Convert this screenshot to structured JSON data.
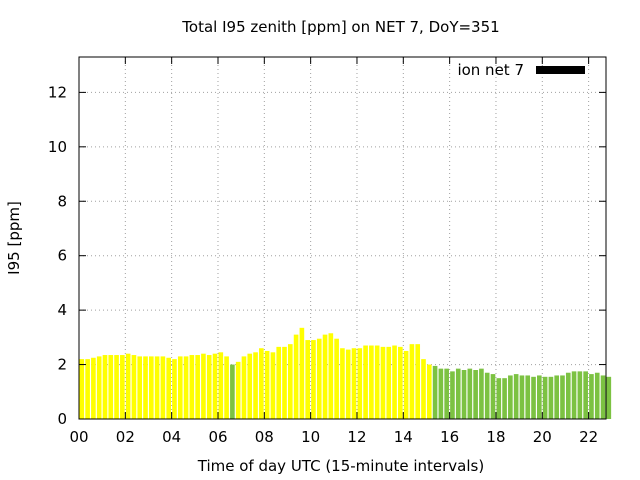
{
  "chart_data": {
    "type": "bar",
    "title": "Total I95 zenith [ppm] on NET 7, DoY=351",
    "xlabel": "Time of day UTC (15-minute intervals)",
    "ylabel": "I95 [ppm]",
    "xlim": [
      0,
      22.75
    ],
    "ylim": [
      0,
      13.3
    ],
    "xticks": [
      "00",
      "02",
      "04",
      "06",
      "08",
      "10",
      "12",
      "14",
      "16",
      "18",
      "20",
      "22"
    ],
    "xtick_values": [
      0,
      2,
      4,
      6,
      8,
      10,
      12,
      14,
      16,
      18,
      20,
      22
    ],
    "yticks": [
      "0",
      "2",
      "4",
      "6",
      "8",
      "10",
      "12"
    ],
    "ytick_values": [
      0,
      2,
      4,
      6,
      8,
      10,
      12
    ],
    "grid": true,
    "legend": {
      "label": "ion net 7",
      "position": "top-right",
      "color": "#000000"
    },
    "colors": {
      "yellow": "#ffff00",
      "green": "#7cc242"
    },
    "interval_hours": 0.25,
    "values": [
      2.2,
      2.2,
      2.25,
      2.3,
      2.35,
      2.35,
      2.35,
      2.35,
      2.4,
      2.35,
      2.3,
      2.3,
      2.3,
      2.3,
      2.3,
      2.25,
      2.2,
      2.3,
      2.3,
      2.35,
      2.35,
      2.4,
      2.35,
      2.4,
      2.45,
      2.3,
      2.0,
      2.1,
      2.3,
      2.4,
      2.45,
      2.6,
      2.5,
      2.45,
      2.65,
      2.65,
      2.75,
      3.1,
      3.35,
      2.9,
      2.9,
      2.95,
      3.1,
      3.15,
      2.95,
      2.6,
      2.55,
      2.6,
      2.6,
      2.7,
      2.7,
      2.7,
      2.65,
      2.65,
      2.7,
      2.65,
      2.5,
      2.75,
      2.75,
      2.2,
      2.0,
      1.95,
      1.85,
      1.85,
      1.75,
      1.85,
      1.8,
      1.85,
      1.8,
      1.85,
      1.7,
      1.65,
      1.5,
      1.5,
      1.6,
      1.65,
      1.6,
      1.6,
      1.55,
      1.6,
      1.55,
      1.55,
      1.6,
      1.6,
      1.7,
      1.75,
      1.75,
      1.75,
      1.65,
      1.7,
      1.6,
      1.55
    ],
    "bar_colors": [
      "yellow",
      "yellow",
      "yellow",
      "yellow",
      "yellow",
      "yellow",
      "yellow",
      "yellow",
      "yellow",
      "yellow",
      "yellow",
      "yellow",
      "yellow",
      "yellow",
      "yellow",
      "yellow",
      "yellow",
      "yellow",
      "yellow",
      "yellow",
      "yellow",
      "yellow",
      "yellow",
      "yellow",
      "yellow",
      "yellow",
      "green",
      "yellow",
      "yellow",
      "yellow",
      "yellow",
      "yellow",
      "yellow",
      "yellow",
      "yellow",
      "yellow",
      "yellow",
      "yellow",
      "yellow",
      "yellow",
      "yellow",
      "yellow",
      "yellow",
      "yellow",
      "yellow",
      "yellow",
      "yellow",
      "yellow",
      "yellow",
      "yellow",
      "yellow",
      "yellow",
      "yellow",
      "yellow",
      "yellow",
      "yellow",
      "yellow",
      "yellow",
      "yellow",
      "yellow",
      "yellow",
      "green",
      "green",
      "green",
      "green",
      "green",
      "green",
      "green",
      "green",
      "green",
      "green",
      "green",
      "green",
      "green",
      "green",
      "green",
      "green",
      "green",
      "green",
      "green",
      "green",
      "green",
      "green",
      "green",
      "green",
      "green",
      "green",
      "green",
      "green",
      "green",
      "green",
      "green"
    ]
  }
}
